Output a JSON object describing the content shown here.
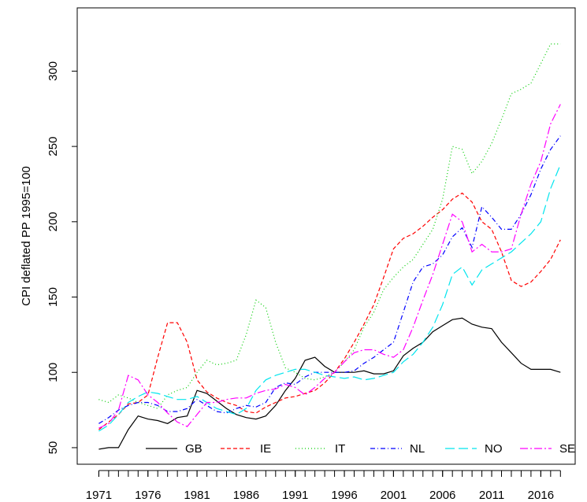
{
  "chart_data": {
    "type": "line",
    "y_label": "CPI deflated PP 1995=100",
    "x": [
      1971,
      1972,
      1973,
      1974,
      1975,
      1976,
      1977,
      1978,
      1979,
      1980,
      1981,
      1982,
      1983,
      1984,
      1985,
      1986,
      1987,
      1988,
      1989,
      1990,
      1991,
      1992,
      1993,
      1994,
      1995,
      1996,
      1997,
      1998,
      1999,
      2000,
      2001,
      2002,
      2003,
      2004,
      2005,
      2006,
      2007,
      2008,
      2009,
      2010,
      2011,
      2012,
      2013,
      2014,
      2015,
      2016,
      2017,
      2018
    ],
    "series": [
      {
        "name": "GB",
        "color": "#000000",
        "dash": "",
        "values": [
          49,
          50,
          50,
          62,
          71,
          69,
          68,
          66,
          70,
          71,
          88,
          86,
          81,
          76,
          72,
          70,
          69,
          71,
          78,
          88,
          96,
          108,
          110,
          104,
          100,
          100,
          100,
          101,
          99,
          99,
          101,
          111,
          116,
          120,
          127,
          131,
          135,
          136,
          132,
          130,
          129,
          120,
          113,
          106,
          102,
          102,
          102,
          100
        ]
      },
      {
        "name": "IE",
        "color": "#ff0000",
        "dash": "5,3",
        "values": [
          62,
          67,
          72,
          79,
          80,
          85,
          110,
          133,
          133,
          120,
          95,
          87,
          83,
          80,
          78,
          74,
          73,
          77,
          80,
          83,
          84,
          86,
          88,
          93,
          100,
          109,
          120,
          132,
          145,
          163,
          182,
          189,
          192,
          197,
          203,
          208,
          215,
          219,
          213,
          200,
          195,
          180,
          161,
          157,
          160,
          167,
          175,
          188
        ]
      },
      {
        "name": "IT",
        "color": "#00cd00",
        "dash": "1,3",
        "values": [
          82,
          80,
          85,
          83,
          80,
          78,
          76,
          85,
          88,
          90,
          100,
          108,
          105,
          106,
          108,
          125,
          148,
          143,
          120,
          103,
          100,
          96,
          95,
          97,
          100,
          107,
          115,
          130,
          140,
          155,
          163,
          170,
          175,
          185,
          195,
          215,
          250,
          248,
          232,
          240,
          252,
          268,
          285,
          288,
          292,
          305,
          318,
          318
        ]
      },
      {
        "name": "NL",
        "color": "#0000ff",
        "dash": "6,3,1,3",
        "values": [
          66,
          70,
          75,
          78,
          80,
          80,
          78,
          74,
          74,
          76,
          82,
          78,
          74,
          73,
          76,
          78,
          77,
          80,
          90,
          93,
          92,
          97,
          100,
          100,
          100,
          100,
          101,
          106,
          110,
          115,
          120,
          140,
          160,
          170,
          172,
          178,
          190,
          196,
          183,
          210,
          203,
          195,
          195,
          205,
          218,
          235,
          248,
          257
        ]
      },
      {
        "name": "NO",
        "color": "#00e5ee",
        "dash": "12,5",
        "values": [
          61,
          65,
          72,
          80,
          84,
          87,
          86,
          84,
          82,
          82,
          84,
          80,
          76,
          74,
          72,
          76,
          88,
          95,
          98,
          100,
          102,
          102,
          100,
          98,
          97,
          96,
          97,
          95,
          96,
          98,
          100,
          107,
          112,
          120,
          130,
          145,
          165,
          170,
          158,
          168,
          172,
          176,
          180,
          186,
          192,
          200,
          222,
          238
        ]
      },
      {
        "name": "SE",
        "color": "#ff00ff",
        "dash": "10,3,2,3",
        "values": [
          63,
          66,
          75,
          98,
          95,
          85,
          80,
          73,
          67,
          64,
          72,
          80,
          80,
          82,
          83,
          83,
          86,
          88,
          89,
          92,
          90,
          85,
          90,
          96,
          100,
          107,
          113,
          115,
          115,
          112,
          110,
          115,
          130,
          148,
          165,
          185,
          205,
          200,
          180,
          185,
          180,
          180,
          182,
          205,
          225,
          240,
          265,
          278
        ]
      }
    ],
    "xlim": [
      1968.8,
      2019.5
    ],
    "ylim": [
      39,
      342
    ],
    "xticks": [
      1971,
      1976,
      1981,
      1986,
      1991,
      1996,
      2001,
      2006,
      2011,
      2016
    ],
    "xminor_ticks": [
      1971,
      1972,
      1973,
      1974,
      1975,
      1976,
      1977,
      1978,
      1979,
      1980,
      1981,
      1982,
      1983,
      1984,
      1985,
      1986,
      1987,
      1988,
      1989,
      1990,
      1991,
      1992,
      1993,
      1994,
      1995,
      1996,
      1997,
      1998,
      1999,
      2000,
      2001,
      2002,
      2003,
      2004,
      2005,
      2006,
      2007,
      2008,
      2009,
      2010,
      2011,
      2012,
      2013,
      2014,
      2015,
      2016,
      2017,
      2018
    ],
    "yticks": [
      50,
      100,
      150,
      200,
      250,
      300
    ],
    "legend": "bottom"
  }
}
